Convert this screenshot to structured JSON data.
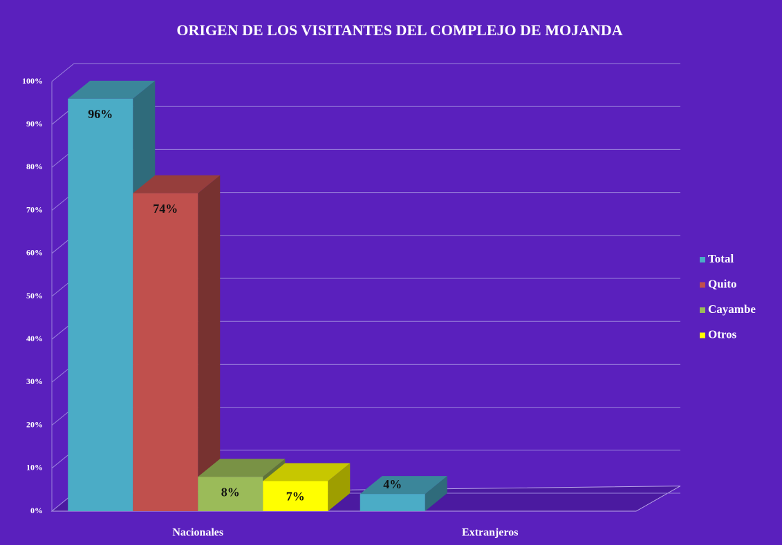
{
  "chart_data": {
    "type": "bar3d",
    "title": "ORIGEN DE LOS VISITANTES DEL COMPLEJO DE MOJANDA",
    "categories": [
      "Nacionales",
      "Extranjeros"
    ],
    "series": [
      {
        "name": "Total",
        "color": "#4bacc6",
        "values": [
          96,
          4
        ],
        "value_labels": [
          "96%",
          "4%"
        ]
      },
      {
        "name": "Quito",
        "color": "#c0504d",
        "values": [
          74,
          null
        ],
        "value_labels": [
          "74%",
          null
        ]
      },
      {
        "name": "Cayambe",
        "color": "#9bbb59",
        "values": [
          8,
          null
        ],
        "value_labels": [
          "8%",
          null
        ]
      },
      {
        "name": "Otros",
        "color": "#ffff00",
        "values": [
          7,
          null
        ],
        "value_labels": [
          "7%",
          null
        ]
      }
    ],
    "ylim": [
      0,
      100
    ],
    "yticks": [
      {
        "value": 0,
        "label": "0%"
      },
      {
        "value": 10,
        "label": "10%"
      },
      {
        "value": 20,
        "label": "20%"
      },
      {
        "value": 30,
        "label": "30%"
      },
      {
        "value": 40,
        "label": "40%"
      },
      {
        "value": 50,
        "label": "50%"
      },
      {
        "value": 60,
        "label": "60%"
      },
      {
        "value": 70,
        "label": "70%"
      },
      {
        "value": 80,
        "label": "80%"
      },
      {
        "value": 90,
        "label": "90%"
      },
      {
        "value": 100,
        "label": "100%"
      }
    ],
    "grid": true,
    "legend": "right"
  }
}
